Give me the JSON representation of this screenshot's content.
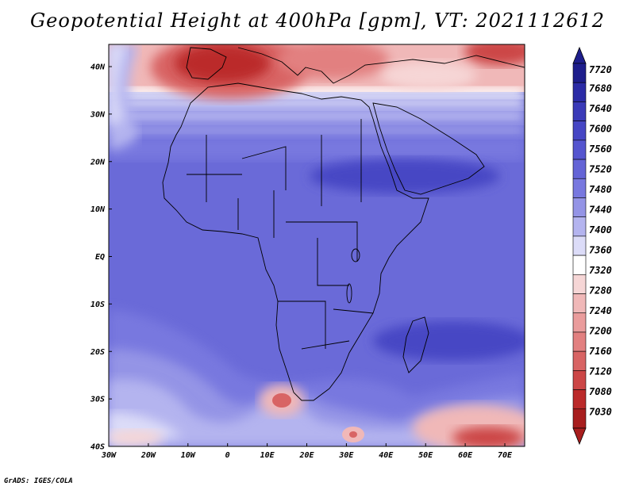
{
  "title": "Geopotential Height at 400hPa [gpm], VT: 2021112612",
  "credit": "GrADS: IGES/COLA",
  "map": {
    "lat_labels": [
      "40N",
      "30N",
      "20N",
      "10N",
      "EQ",
      "10S",
      "20S",
      "30S",
      "40S"
    ],
    "lon_labels": [
      "30W",
      "20W",
      "10W",
      "0",
      "10E",
      "20E",
      "30E",
      "40E",
      "50E",
      "60E",
      "70E"
    ]
  },
  "colorbar": {
    "labels": [
      "7720",
      "7680",
      "7640",
      "7600",
      "7560",
      "7520",
      "7480",
      "7440",
      "7400",
      "7360",
      "7320",
      "7280",
      "7240",
      "7200",
      "7160",
      "7120",
      "7080",
      "7030"
    ],
    "colors": [
      "#1e1e8c",
      "#2b2ba6",
      "#3a3ab8",
      "#4646c4",
      "#5555cf",
      "#6464d6",
      "#7878df",
      "#9494e6",
      "#b4b4ef",
      "#dcdcf8",
      "#ffffff",
      "#f6d6d6",
      "#f0b8b8",
      "#ea9c9c",
      "#e28080",
      "#d86464",
      "#cc4646",
      "#bb2a2a",
      "#a81e1e"
    ]
  }
}
